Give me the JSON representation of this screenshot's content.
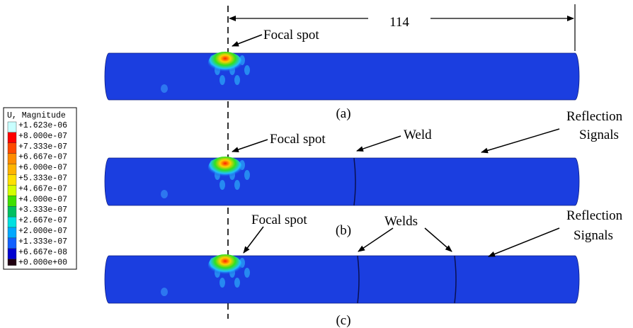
{
  "legend": {
    "title": "U, Magnitude",
    "labels": [
      "+1.623e-06",
      "+8.000e-07",
      "+7.333e-07",
      "+6.667e-07",
      "+6.000e-07",
      "+5.333e-07",
      "+4.667e-07",
      "+4.000e-07",
      "+3.333e-07",
      "+2.667e-07",
      "+2.000e-07",
      "+1.333e-07",
      "+6.667e-08",
      "+0.000e+00"
    ]
  },
  "dimension": "114",
  "panels": [
    {
      "label": "(a)",
      "focal": "Focal spot"
    },
    {
      "label": "(b)",
      "focal": "Focal spot",
      "weld": "Weld",
      "reflection": [
        "Reflection",
        "Signals"
      ]
    },
    {
      "label": "(c)",
      "focal": "Focal spot",
      "weld": "Welds",
      "reflection": [
        "Reflection",
        "Signals"
      ]
    }
  ]
}
